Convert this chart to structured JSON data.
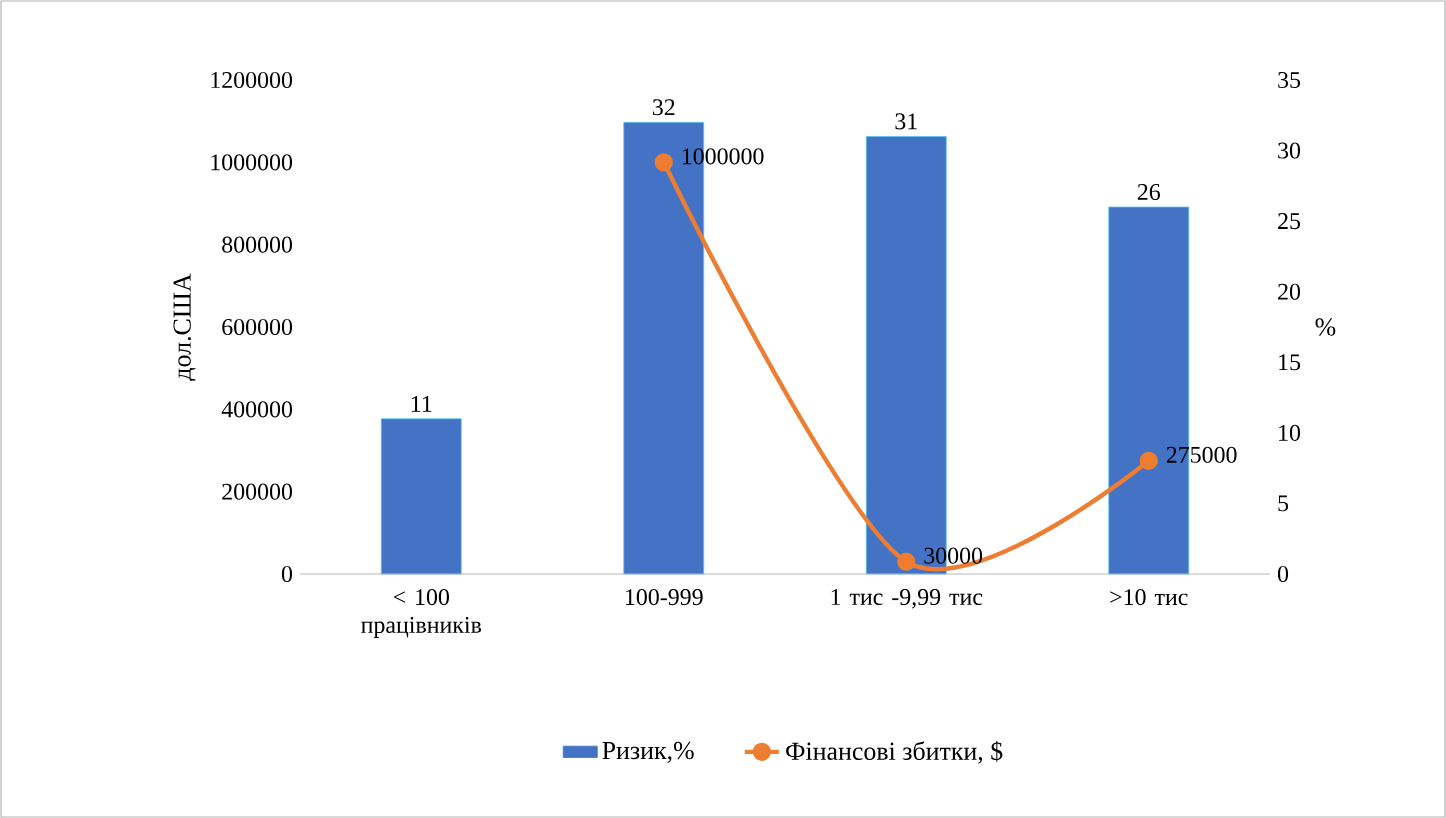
{
  "chart_data": {
    "type": "bar",
    "categories": [
      "< 100 працівників",
      "100-999",
      "1 тис -9,99 тис",
      ">10 тис"
    ],
    "ylabel": "дол.США",
    "y2label": "%",
    "ylim": [
      0,
      1200000
    ],
    "yticks": [
      0,
      200000,
      400000,
      600000,
      800000,
      1000000,
      1200000
    ],
    "y2lim": [
      0,
      35
    ],
    "y2ticks": [
      0,
      5,
      10,
      15,
      20,
      25,
      30,
      35
    ],
    "marker": "circle",
    "data_labels": true,
    "legend": "bottom",
    "grid": false,
    "series": [
      {
        "name": "Ризик,%",
        "axis": "y2",
        "color": "#4472c4",
        "values": [
          11,
          32,
          31,
          26
        ]
      },
      {
        "name": "Фінансові збитки, $",
        "type": "line",
        "axis": "y",
        "color": "#ed7d31",
        "values": [
          null,
          1000000,
          30000,
          275000
        ]
      }
    ]
  }
}
